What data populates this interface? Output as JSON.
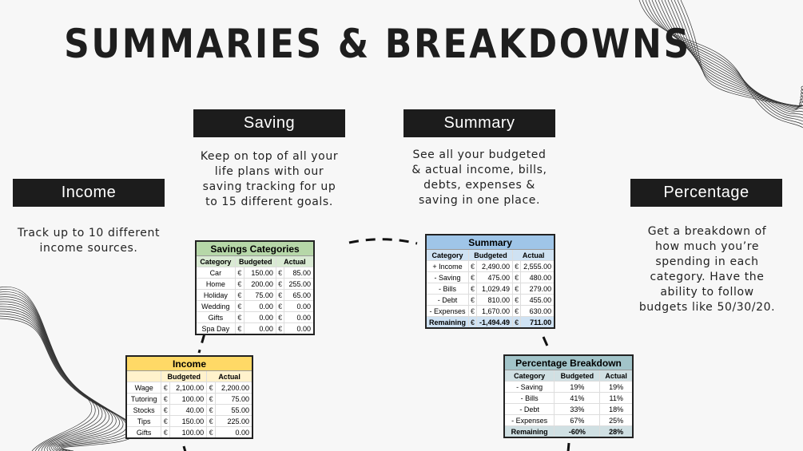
{
  "title": "SUMMARIES & BREAKDOWNS",
  "sections": {
    "saving": {
      "label": "Saving",
      "description": [
        "Keep on top of all your",
        "life plans with our",
        "saving tracking for up",
        "to 15 different goals."
      ]
    },
    "summary": {
      "label": "Summary",
      "description": [
        "See all your budgeted",
        "& actual income, bills,",
        "debts, expenses &",
        "saving in one place."
      ]
    },
    "income": {
      "label": "Income",
      "description": [
        "Track up to 10 different",
        "income sources."
      ]
    },
    "percentage": {
      "label": "Percentage",
      "description": [
        "Get a breakdown of",
        "how much you’re",
        "spending in each",
        "category. Have the",
        "ability to follow",
        "budgets like 50/30/20."
      ]
    }
  },
  "tables": {
    "savings": {
      "title": "Savings Categories",
      "header_color": "#b6d7a8",
      "sub_color": "#d9ead3",
      "currency": "€",
      "columns": [
        "Category",
        "Budgeted",
        "Actual"
      ],
      "rows": [
        [
          "Car",
          "150.00",
          "85.00"
        ],
        [
          "Home",
          "200.00",
          "255.00"
        ],
        [
          "Holiday",
          "75.00",
          "65.00"
        ],
        [
          "Wedding",
          "0.00",
          "0.00"
        ],
        [
          "Gifts",
          "0.00",
          "0.00"
        ],
        [
          "Spa Day",
          "0.00",
          "0.00"
        ]
      ]
    },
    "summary": {
      "title": "Summary",
      "header_color": "#9fc5e8",
      "sub_color": "#cfe2f3",
      "currency": "€",
      "columns": [
        "Category",
        "Budgeted",
        "Actual"
      ],
      "rows": [
        [
          "+ Income",
          "2,490.00",
          "2,555.00"
        ],
        [
          "- Saving",
          "475.00",
          "480.00"
        ],
        [
          "- Bills",
          "1,029.49",
          "279.00"
        ],
        [
          "- Debt",
          "810.00",
          "455.00"
        ],
        [
          "- Expenses",
          "1,670.00",
          "630.00"
        ]
      ],
      "total": [
        "Remaining",
        "-1,494.49",
        "711.00"
      ]
    },
    "income": {
      "title": "Income",
      "header_color": "#ffd966",
      "sub_color": "#fff2cc",
      "currency": "€",
      "columns": [
        "",
        "Budgeted",
        "Actual"
      ],
      "rows": [
        [
          "Wage",
          "2,100.00",
          "2,200.00"
        ],
        [
          "Tutoring",
          "100.00",
          "75.00"
        ],
        [
          "Stocks",
          "40.00",
          "55.00"
        ],
        [
          "Tips",
          "150.00",
          "225.00"
        ],
        [
          "Gifts",
          "100.00",
          "0.00"
        ]
      ]
    },
    "percentage": {
      "title": "Percentage Breakdown",
      "header_color": "#a2c4c9",
      "sub_color": "#d0e0e3",
      "currency": "",
      "columns": [
        "Category",
        "Budgeted",
        "Actual"
      ],
      "rows": [
        [
          "- Saving",
          "19%",
          "19%"
        ],
        [
          "- Bills",
          "41%",
          "11%"
        ],
        [
          "- Debt",
          "33%",
          "18%"
        ],
        [
          "- Expenses",
          "67%",
          "25%"
        ]
      ],
      "total": [
        "Remaining",
        "-60%",
        "28%"
      ]
    }
  }
}
